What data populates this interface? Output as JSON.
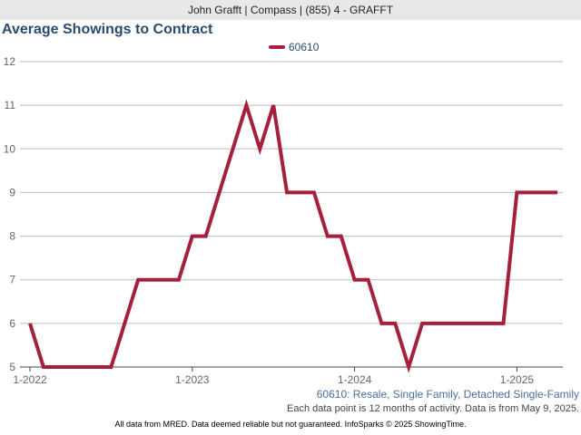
{
  "header": {
    "text": "John Grafft | Compass | (855) 4 - GRAFFT"
  },
  "footer": {
    "subtitle": "60610: Resale, Single Family, Detached Single-Family",
    "note": "Each data point is 12 months of activity. Data is from May 9, 2025.",
    "credits": "All data from MRED. Data deemed reliable but not guaranteed. InfoSparks © 2025 ShowingTime."
  },
  "chart_data": {
    "type": "line",
    "title": "Average Showings to Contract",
    "xlabel": "",
    "ylabel": "",
    "ylim": [
      5,
      12
    ],
    "y_ticks": [
      "12",
      "11",
      "10",
      "9",
      "8",
      "7",
      "6",
      "5"
    ],
    "x_ticks": [
      "1-2022",
      "1-2023",
      "1-2024",
      "1-2025"
    ],
    "grid": true,
    "legend_position": "top-center",
    "series": [
      {
        "name": "60610",
        "color": "#a6203c",
        "x": [
          "2022-01",
          "2022-02",
          "2022-03",
          "2022-04",
          "2022-05",
          "2022-06",
          "2022-07",
          "2022-08",
          "2022-09",
          "2022-10",
          "2022-11",
          "2022-12",
          "2023-01",
          "2023-02",
          "2023-03",
          "2023-04",
          "2023-05",
          "2023-06",
          "2023-07",
          "2023-08",
          "2023-09",
          "2023-10",
          "2023-11",
          "2023-12",
          "2024-01",
          "2024-02",
          "2024-03",
          "2024-04",
          "2024-05",
          "2024-06",
          "2024-07",
          "2024-08",
          "2024-09",
          "2024-10",
          "2024-11",
          "2024-12",
          "2025-01",
          "2025-02",
          "2025-03",
          "2025-04"
        ],
        "values": [
          6,
          5,
          5,
          5,
          5,
          5,
          5,
          6,
          7,
          7,
          7,
          7,
          8,
          8,
          9,
          10,
          11,
          10,
          11,
          9,
          9,
          9,
          8,
          8,
          7,
          7,
          6,
          6,
          5,
          6,
          6,
          6,
          6,
          6,
          6,
          6,
          9,
          9,
          9,
          9
        ]
      }
    ]
  }
}
